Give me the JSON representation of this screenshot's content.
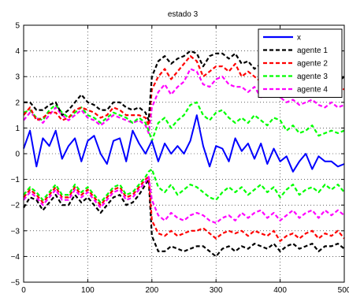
{
  "chart_data": {
    "type": "line",
    "title": "estado 3",
    "xlabel": "",
    "ylabel": "",
    "xlim": [
      0,
      500
    ],
    "ylim": [
      -5,
      5
    ],
    "xticks": [
      0,
      100,
      200,
      300,
      400,
      500
    ],
    "yticks": [
      -5,
      -4,
      -3,
      -2,
      -1,
      0,
      1,
      2,
      3,
      4,
      5
    ],
    "grid": true,
    "legend_position": "top-right",
    "series": [
      {
        "name": "x",
        "color": "#0000ff",
        "style": "solid",
        "x": [
          0,
          10,
          20,
          30,
          40,
          50,
          60,
          70,
          80,
          90,
          100,
          110,
          120,
          130,
          140,
          150,
          160,
          170,
          180,
          190,
          200,
          210,
          220,
          230,
          240,
          250,
          260,
          270,
          280,
          290,
          300,
          310,
          320,
          330,
          340,
          350,
          360,
          370,
          380,
          390,
          400,
          410,
          420,
          430,
          440,
          450,
          460,
          470,
          480,
          490,
          500
        ],
        "y": [
          0.2,
          0.9,
          -0.5,
          0.6,
          0.3,
          0.9,
          -0.2,
          0.3,
          0.6,
          -0.3,
          0.5,
          0.7,
          0.0,
          -0.4,
          0.5,
          0.6,
          -0.3,
          0.9,
          0.4,
          0.0,
          0.5,
          -0.3,
          0.4,
          0.0,
          0.3,
          0.0,
          0.5,
          1.5,
          0.3,
          -0.5,
          0.3,
          0.2,
          -0.3,
          0.6,
          0.1,
          0.4,
          -0.2,
          0.4,
          -0.4,
          0.2,
          -0.3,
          -0.1,
          -0.7,
          -0.3,
          0.0,
          -0.6,
          -0.1,
          -0.3,
          -0.3,
          -0.5,
          -0.4
        ]
      },
      {
        "name": "agente 1",
        "color": "#000000",
        "style": "dashed",
        "x": [
          0,
          10,
          20,
          30,
          40,
          50,
          60,
          70,
          80,
          90,
          100,
          110,
          120,
          130,
          140,
          150,
          160,
          170,
          180,
          190,
          195,
          200,
          210,
          220,
          230,
          240,
          250,
          260,
          270,
          280,
          290,
          300,
          310,
          320,
          330,
          340,
          350,
          360,
          370,
          380,
          390,
          400,
          410,
          420,
          430,
          440,
          450,
          460,
          470,
          480,
          490,
          500
        ],
        "y": [
          2.0,
          2.0,
          1.7,
          1.7,
          1.9,
          2.0,
          1.5,
          1.7,
          2.0,
          2.3,
          2.0,
          1.9,
          1.7,
          1.7,
          2.0,
          2.0,
          1.8,
          1.7,
          1.8,
          1.6,
          1.3,
          3.0,
          3.6,
          3.8,
          3.5,
          3.7,
          3.8,
          4.0,
          3.9,
          3.4,
          3.8,
          3.9,
          3.9,
          3.7,
          3.9,
          3.5,
          3.6,
          3.3,
          3.5,
          3.4,
          3.5,
          3.2,
          3.3,
          3.4,
          3.2,
          3.0,
          3.0,
          3.0,
          2.8,
          3.0,
          2.8,
          3.0
        ]
      },
      {
        "name": "agente 2",
        "color": "#ff0000",
        "style": "dashed",
        "x": [
          0,
          10,
          20,
          30,
          40,
          50,
          60,
          70,
          80,
          90,
          100,
          110,
          120,
          130,
          140,
          150,
          160,
          170,
          180,
          190,
          195,
          200,
          210,
          220,
          230,
          240,
          250,
          260,
          270,
          280,
          290,
          300,
          310,
          320,
          330,
          340,
          350,
          360,
          370,
          380,
          390,
          400,
          410,
          420,
          430,
          440,
          450,
          460,
          470,
          480,
          490,
          500
        ],
        "y": [
          1.5,
          1.8,
          1.3,
          1.4,
          1.6,
          1.6,
          1.3,
          1.4,
          1.7,
          1.8,
          1.7,
          1.6,
          1.4,
          1.5,
          1.8,
          1.7,
          1.5,
          1.5,
          1.5,
          1.4,
          1.1,
          2.5,
          3.0,
          3.3,
          2.9,
          3.2,
          3.5,
          3.8,
          3.6,
          3.0,
          3.2,
          3.4,
          3.4,
          3.2,
          3.5,
          3.0,
          3.2,
          3.0,
          2.8,
          3.0,
          2.8,
          2.7,
          2.6,
          2.8,
          2.7,
          2.6,
          2.8,
          2.5,
          2.6,
          2.5,
          2.6,
          2.5
        ]
      },
      {
        "name": "agente 3",
        "color": "#00ff00",
        "style": "dashed",
        "x": [
          0,
          10,
          20,
          30,
          40,
          50,
          60,
          70,
          80,
          90,
          100,
          110,
          120,
          130,
          140,
          150,
          160,
          170,
          180,
          190,
          195,
          200,
          210,
          220,
          230,
          240,
          250,
          260,
          270,
          280,
          290,
          300,
          310,
          320,
          330,
          340,
          350,
          360,
          370,
          380,
          390,
          400,
          410,
          420,
          430,
          440,
          450,
          460,
          470,
          480,
          490,
          500
        ],
        "y": [
          1.6,
          1.7,
          1.4,
          1.3,
          1.7,
          1.9,
          1.6,
          1.4,
          1.6,
          1.8,
          1.5,
          1.4,
          1.2,
          1.4,
          1.6,
          1.5,
          1.4,
          1.2,
          1.4,
          1.2,
          0.9,
          0.5,
          1.2,
          1.4,
          1.0,
          1.3,
          1.5,
          1.9,
          2.0,
          1.5,
          1.3,
          1.6,
          1.7,
          1.4,
          1.2,
          1.4,
          1.2,
          1.5,
          1.3,
          1.1,
          1.4,
          1.3,
          0.9,
          1.1,
          0.8,
          0.9,
          1.1,
          0.7,
          0.8,
          0.9,
          0.8,
          0.9
        ]
      },
      {
        "name": "agente 4",
        "color": "#ff00ff",
        "style": "dashed",
        "x": [
          0,
          10,
          20,
          30,
          40,
          50,
          60,
          70,
          80,
          90,
          100,
          110,
          120,
          130,
          140,
          150,
          160,
          170,
          180,
          190,
          195,
          200,
          210,
          220,
          230,
          240,
          250,
          260,
          270,
          280,
          290,
          300,
          310,
          320,
          330,
          340,
          350,
          360,
          370,
          380,
          390,
          400,
          410,
          420,
          430,
          440,
          450,
          460,
          470,
          480,
          490,
          500
        ],
        "y": [
          1.3,
          1.6,
          1.4,
          1.2,
          1.5,
          1.8,
          1.5,
          1.3,
          1.5,
          1.7,
          1.4,
          1.3,
          1.1,
          1.3,
          1.5,
          1.4,
          1.3,
          1.2,
          1.3,
          1.1,
          0.8,
          1.8,
          2.4,
          2.7,
          2.3,
          2.6,
          2.8,
          3.3,
          3.2,
          2.7,
          2.6,
          2.9,
          3.0,
          2.7,
          2.6,
          2.6,
          2.4,
          2.6,
          2.2,
          2.3,
          2.4,
          2.2,
          2.0,
          2.1,
          1.9,
          2.0,
          2.1,
          1.9,
          1.8,
          2.0,
          1.8,
          1.9
        ]
      },
      {
        "name": "agente 1 (lower)",
        "color": "#000000",
        "style": "dashed",
        "legend": false,
        "x": [
          0,
          10,
          20,
          30,
          40,
          50,
          60,
          70,
          80,
          90,
          100,
          110,
          120,
          130,
          140,
          150,
          160,
          170,
          180,
          190,
          195,
          200,
          210,
          220,
          230,
          240,
          250,
          260,
          270,
          280,
          290,
          300,
          310,
          320,
          330,
          340,
          350,
          360,
          370,
          380,
          390,
          400,
          410,
          420,
          430,
          440,
          450,
          460,
          470,
          480,
          490,
          500
        ],
        "y": [
          -2.1,
          -1.7,
          -1.8,
          -2.2,
          -1.9,
          -1.6,
          -2.0,
          -2.0,
          -1.6,
          -1.9,
          -1.7,
          -2.0,
          -2.3,
          -2.0,
          -1.7,
          -1.6,
          -2.0,
          -1.9,
          -1.6,
          -1.2,
          -1.0,
          -3.2,
          -3.8,
          -3.8,
          -3.6,
          -3.7,
          -3.8,
          -3.7,
          -3.6,
          -3.6,
          -3.8,
          -4.0,
          -3.7,
          -3.6,
          -3.8,
          -3.6,
          -3.7,
          -3.5,
          -3.6,
          -3.7,
          -3.5,
          -3.8,
          -3.6,
          -3.5,
          -3.7,
          -3.6,
          -3.5,
          -3.8,
          -3.6,
          -3.6,
          -3.5,
          -3.7
        ]
      },
      {
        "name": "agente 2 (lower)",
        "color": "#ff0000",
        "style": "dashed",
        "legend": false,
        "x": [
          0,
          10,
          20,
          30,
          40,
          50,
          60,
          70,
          80,
          90,
          100,
          110,
          120,
          130,
          140,
          150,
          160,
          170,
          180,
          190,
          195,
          200,
          210,
          220,
          230,
          240,
          250,
          260,
          270,
          280,
          290,
          300,
          310,
          320,
          330,
          340,
          350,
          360,
          370,
          380,
          390,
          400,
          410,
          420,
          430,
          440,
          450,
          460,
          470,
          480,
          490,
          500
        ],
        "y": [
          -1.7,
          -1.4,
          -1.6,
          -1.9,
          -1.6,
          -1.3,
          -1.7,
          -1.7,
          -1.3,
          -1.6,
          -1.4,
          -1.7,
          -2.0,
          -1.7,
          -1.4,
          -1.3,
          -1.7,
          -1.6,
          -1.3,
          -1.0,
          -0.9,
          -2.6,
          -3.1,
          -3.2,
          -3.0,
          -3.2,
          -3.1,
          -3.0,
          -3.0,
          -2.9,
          -3.1,
          -3.3,
          -3.1,
          -3.0,
          -3.1,
          -3.0,
          -3.2,
          -3.0,
          -3.1,
          -3.2,
          -3.0,
          -3.4,
          -3.2,
          -3.1,
          -3.3,
          -3.1,
          -3.0,
          -3.3,
          -3.1,
          -3.2,
          -3.0,
          -3.3
        ]
      },
      {
        "name": "agente 3 (lower)",
        "color": "#00ff00",
        "style": "dashed",
        "legend": false,
        "x": [
          0,
          10,
          20,
          30,
          40,
          50,
          60,
          70,
          80,
          90,
          100,
          110,
          120,
          130,
          140,
          150,
          160,
          170,
          180,
          190,
          195,
          200,
          210,
          220,
          230,
          240,
          250,
          260,
          270,
          280,
          290,
          300,
          310,
          320,
          330,
          340,
          350,
          360,
          370,
          380,
          390,
          400,
          410,
          420,
          430,
          440,
          450,
          460,
          470,
          480,
          490,
          500
        ],
        "y": [
          -1.6,
          -1.3,
          -1.5,
          -1.8,
          -1.5,
          -1.2,
          -1.6,
          -1.6,
          -1.2,
          -1.5,
          -1.3,
          -1.6,
          -1.9,
          -1.6,
          -1.3,
          -1.2,
          -1.6,
          -1.5,
          -1.2,
          -0.9,
          -0.7,
          -0.6,
          -1.3,
          -1.5,
          -1.2,
          -1.6,
          -1.4,
          -1.2,
          -1.3,
          -1.5,
          -1.7,
          -1.8,
          -1.5,
          -1.3,
          -1.5,
          -1.3,
          -1.6,
          -1.4,
          -1.2,
          -1.5,
          -1.3,
          -1.7,
          -1.4,
          -1.2,
          -1.6,
          -1.4,
          -1.3,
          -1.5,
          -1.2,
          -1.4,
          -1.2,
          -1.5
        ]
      },
      {
        "name": "agente 4 (lower)",
        "color": "#ff00ff",
        "style": "dashed",
        "legend": false,
        "x": [
          0,
          10,
          20,
          30,
          40,
          50,
          60,
          70,
          80,
          90,
          100,
          110,
          120,
          130,
          140,
          150,
          160,
          170,
          180,
          190,
          195,
          200,
          210,
          220,
          230,
          240,
          250,
          260,
          270,
          280,
          290,
          300,
          310,
          320,
          330,
          340,
          350,
          360,
          370,
          380,
          390,
          400,
          410,
          420,
          430,
          440,
          450,
          460,
          470,
          480,
          490,
          500
        ],
        "y": [
          -1.8,
          -1.5,
          -1.7,
          -2.0,
          -1.7,
          -1.4,
          -1.8,
          -1.8,
          -1.4,
          -1.7,
          -1.5,
          -1.8,
          -2.1,
          -1.8,
          -1.5,
          -1.4,
          -1.8,
          -1.7,
          -1.4,
          -1.1,
          -0.9,
          -1.8,
          -2.4,
          -2.6,
          -2.3,
          -2.5,
          -2.6,
          -2.4,
          -2.3,
          -2.4,
          -2.6,
          -2.7,
          -2.5,
          -2.4,
          -2.6,
          -2.3,
          -2.5,
          -2.3,
          -2.2,
          -2.5,
          -2.3,
          -2.6,
          -2.4,
          -2.2,
          -2.5,
          -2.3,
          -2.2,
          -2.5,
          -2.2,
          -2.4,
          -2.2,
          -2.4
        ]
      }
    ]
  }
}
